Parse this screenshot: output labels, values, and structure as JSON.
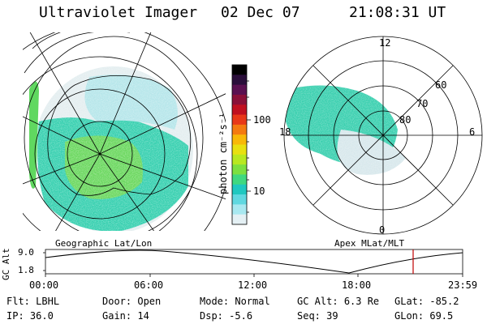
{
  "header": {
    "instrument": "Ultraviolet Imager",
    "date": "02 Dec 07",
    "time": "21:08:31 UT"
  },
  "colorbar": {
    "label": "photon cm⁻²s⁻¹",
    "ticks": [
      "100",
      "10"
    ],
    "colors": [
      "#000000",
      "#2a0e3a",
      "#5a1050",
      "#8a1038",
      "#c01020",
      "#e83818",
      "#f47a10",
      "#f8b808",
      "#e8e010",
      "#b8e820",
      "#7ce040",
      "#40d880",
      "#20c8c0",
      "#60d8e0",
      "#a8e8f0",
      "#e4f0f4"
    ]
  },
  "geo_map": {
    "label": "Geographic Lat/Lon"
  },
  "polar_plot": {
    "label": "Apex MLat/MLT",
    "mlt_labels": {
      "top": "12",
      "left": "18",
      "right": "6",
      "bottom": "0"
    },
    "lat_labels": [
      "60",
      "70",
      "80"
    ]
  },
  "altitude_plot": {
    "ylabel": "GC Alt",
    "yticks": [
      "9.0",
      "1.8"
    ],
    "xticks": [
      "00:00",
      "06:00",
      "12:00",
      "18:00",
      "23:59"
    ],
    "marker_color": "#c00000"
  },
  "status": {
    "row1": [
      {
        "label": "Flt:",
        "value": "LBHL"
      },
      {
        "label": "Door:",
        "value": "Open"
      },
      {
        "label": "Mode:",
        "value": "Normal"
      },
      {
        "label": "GC Alt:",
        "value": "6.3 Re"
      },
      {
        "label": "GLat:",
        "value": "-85.2"
      }
    ],
    "row2": [
      {
        "label": "IP:",
        "value": "36.0"
      },
      {
        "label": "Gain:",
        "value": "14"
      },
      {
        "label": "Dsp:",
        "value": "-5.6"
      },
      {
        "label": "Seq:",
        "value": "39"
      },
      {
        "label": "GLon:",
        "value": "69.5"
      }
    ]
  }
}
